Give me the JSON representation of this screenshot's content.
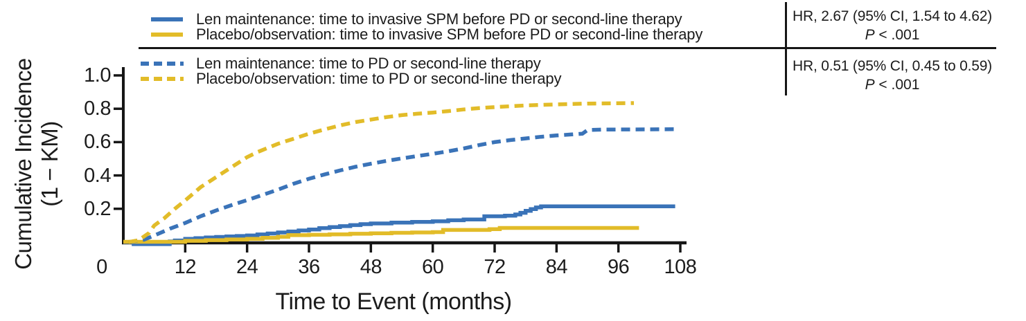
{
  "colors": {
    "len_blue": "#3a73b8",
    "placebo_yellow": "#e2bc29",
    "axis_black": "#161616",
    "background": "#ffffff"
  },
  "hr_annotations": [
    {
      "hr_text": "HR, 2.67 (95% CI, 1.54 to 4.62)",
      "p_label": "P",
      "p_value": " < .001"
    },
    {
      "hr_text": "HR, 0.51 (95% CI, 0.45 to 0.59)",
      "p_label": "P",
      "p_value": " < .001"
    }
  ],
  "chart_data": {
    "type": "line",
    "title": "",
    "xlabel": "Time to Event (months)",
    "ylabel_line1": "Cumulative Incidence",
    "ylabel_line2": "(1 − KM)",
    "xlim": [
      0,
      108
    ],
    "ylim": [
      0,
      1.0
    ],
    "x_ticks": [
      0,
      12,
      24,
      36,
      48,
      60,
      72,
      84,
      96,
      108
    ],
    "y_ticks": [
      0.2,
      0.4,
      0.6,
      0.8,
      1.0
    ],
    "grid": false,
    "legend_position": "top-left",
    "series": [
      {
        "key": "len-spm-solid",
        "name": "Len maintenance: time to invasive SPM before PD or second-line therapy",
        "color": "#3a73b8",
        "dash": false,
        "interp": "step",
        "points": [
          [
            0,
            0
          ],
          [
            2,
            -0.012
          ],
          [
            8,
            -0.012
          ],
          [
            9,
            0.004
          ],
          [
            10,
            0.01
          ],
          [
            12,
            0.02
          ],
          [
            14,
            0.024
          ],
          [
            16,
            0.028
          ],
          [
            18,
            0.031
          ],
          [
            20,
            0.034
          ],
          [
            22,
            0.037
          ],
          [
            24,
            0.04
          ],
          [
            26,
            0.046
          ],
          [
            28,
            0.052
          ],
          [
            30,
            0.058
          ],
          [
            32,
            0.064
          ],
          [
            34,
            0.07
          ],
          [
            36,
            0.076
          ],
          [
            38,
            0.084
          ],
          [
            40,
            0.09
          ],
          [
            42,
            0.096
          ],
          [
            44,
            0.102
          ],
          [
            46,
            0.108
          ],
          [
            48,
            0.112
          ],
          [
            52,
            0.117
          ],
          [
            56,
            0.121
          ],
          [
            60,
            0.125
          ],
          [
            63,
            0.131
          ],
          [
            66,
            0.136
          ],
          [
            70,
            0.155
          ],
          [
            74,
            0.159
          ],
          [
            76,
            0.166
          ],
          [
            77,
            0.176
          ],
          [
            78,
            0.188
          ],
          [
            79,
            0.198
          ],
          [
            80,
            0.208
          ],
          [
            81,
            0.215
          ],
          [
            107,
            0.215
          ]
        ]
      },
      {
        "key": "placebo-spm-solid",
        "name": "Placebo/observation: time to invasive SPM before PD or second-line therapy",
        "color": "#e2bc29",
        "dash": false,
        "interp": "step",
        "points": [
          [
            0,
            0.002
          ],
          [
            12,
            0.008
          ],
          [
            16,
            0.012
          ],
          [
            20,
            0.016
          ],
          [
            24,
            0.02
          ],
          [
            27,
            0.026
          ],
          [
            30,
            0.032
          ],
          [
            32,
            0.042
          ],
          [
            36,
            0.044
          ],
          [
            40,
            0.047
          ],
          [
            44,
            0.05
          ],
          [
            48,
            0.053
          ],
          [
            52,
            0.056
          ],
          [
            56,
            0.058
          ],
          [
            60,
            0.06
          ],
          [
            62,
            0.073
          ],
          [
            71,
            0.078
          ],
          [
            73,
            0.085
          ],
          [
            100,
            0.085
          ]
        ]
      },
      {
        "key": "len-pd-dashed",
        "name": "Len maintenance: time to PD or second-line therapy",
        "color": "#3a73b8",
        "dash": true,
        "interp": "linear",
        "points": [
          [
            1,
            0
          ],
          [
            4,
            0.015
          ],
          [
            6,
            0.04
          ],
          [
            9,
            0.08
          ],
          [
            12,
            0.115
          ],
          [
            15,
            0.155
          ],
          [
            18,
            0.19
          ],
          [
            21,
            0.222
          ],
          [
            24,
            0.252
          ],
          [
            27,
            0.283
          ],
          [
            30,
            0.315
          ],
          [
            33,
            0.35
          ],
          [
            36,
            0.38
          ],
          [
            39,
            0.406
          ],
          [
            42,
            0.43
          ],
          [
            45,
            0.452
          ],
          [
            48,
            0.47
          ],
          [
            51,
            0.487
          ],
          [
            54,
            0.502
          ],
          [
            57,
            0.516
          ],
          [
            60,
            0.53
          ],
          [
            63,
            0.545
          ],
          [
            66,
            0.562
          ],
          [
            69,
            0.582
          ],
          [
            72,
            0.6
          ],
          [
            75,
            0.612
          ],
          [
            78,
            0.622
          ],
          [
            81,
            0.632
          ],
          [
            84,
            0.64
          ],
          [
            87,
            0.646
          ],
          [
            89,
            0.65
          ],
          [
            90,
            0.672
          ],
          [
            93,
            0.675
          ],
          [
            107,
            0.677
          ]
        ]
      },
      {
        "key": "placebo-pd-dashed",
        "name": "Placebo/observation: time to PD or second-line therapy",
        "color": "#e2bc29",
        "dash": true,
        "interp": "linear",
        "points": [
          [
            1,
            0
          ],
          [
            3,
            0.012
          ],
          [
            5,
            0.055
          ],
          [
            6,
            0.1
          ],
          [
            8,
            0.145
          ],
          [
            10,
            0.2
          ],
          [
            12,
            0.25
          ],
          [
            15,
            0.33
          ],
          [
            18,
            0.39
          ],
          [
            21,
            0.45
          ],
          [
            24,
            0.51
          ],
          [
            26,
            0.54
          ],
          [
            28,
            0.565
          ],
          [
            30,
            0.59
          ],
          [
            33,
            0.62
          ],
          [
            36,
            0.65
          ],
          [
            39,
            0.676
          ],
          [
            42,
            0.7
          ],
          [
            45,
            0.72
          ],
          [
            48,
            0.735
          ],
          [
            51,
            0.75
          ],
          [
            54,
            0.762
          ],
          [
            57,
            0.77
          ],
          [
            60,
            0.777
          ],
          [
            63,
            0.786
          ],
          [
            66,
            0.796
          ],
          [
            69,
            0.804
          ],
          [
            72,
            0.81
          ],
          [
            75,
            0.815
          ],
          [
            78,
            0.82
          ],
          [
            82,
            0.824
          ],
          [
            86,
            0.828
          ],
          [
            90,
            0.831
          ],
          [
            99,
            0.834
          ]
        ]
      }
    ]
  }
}
